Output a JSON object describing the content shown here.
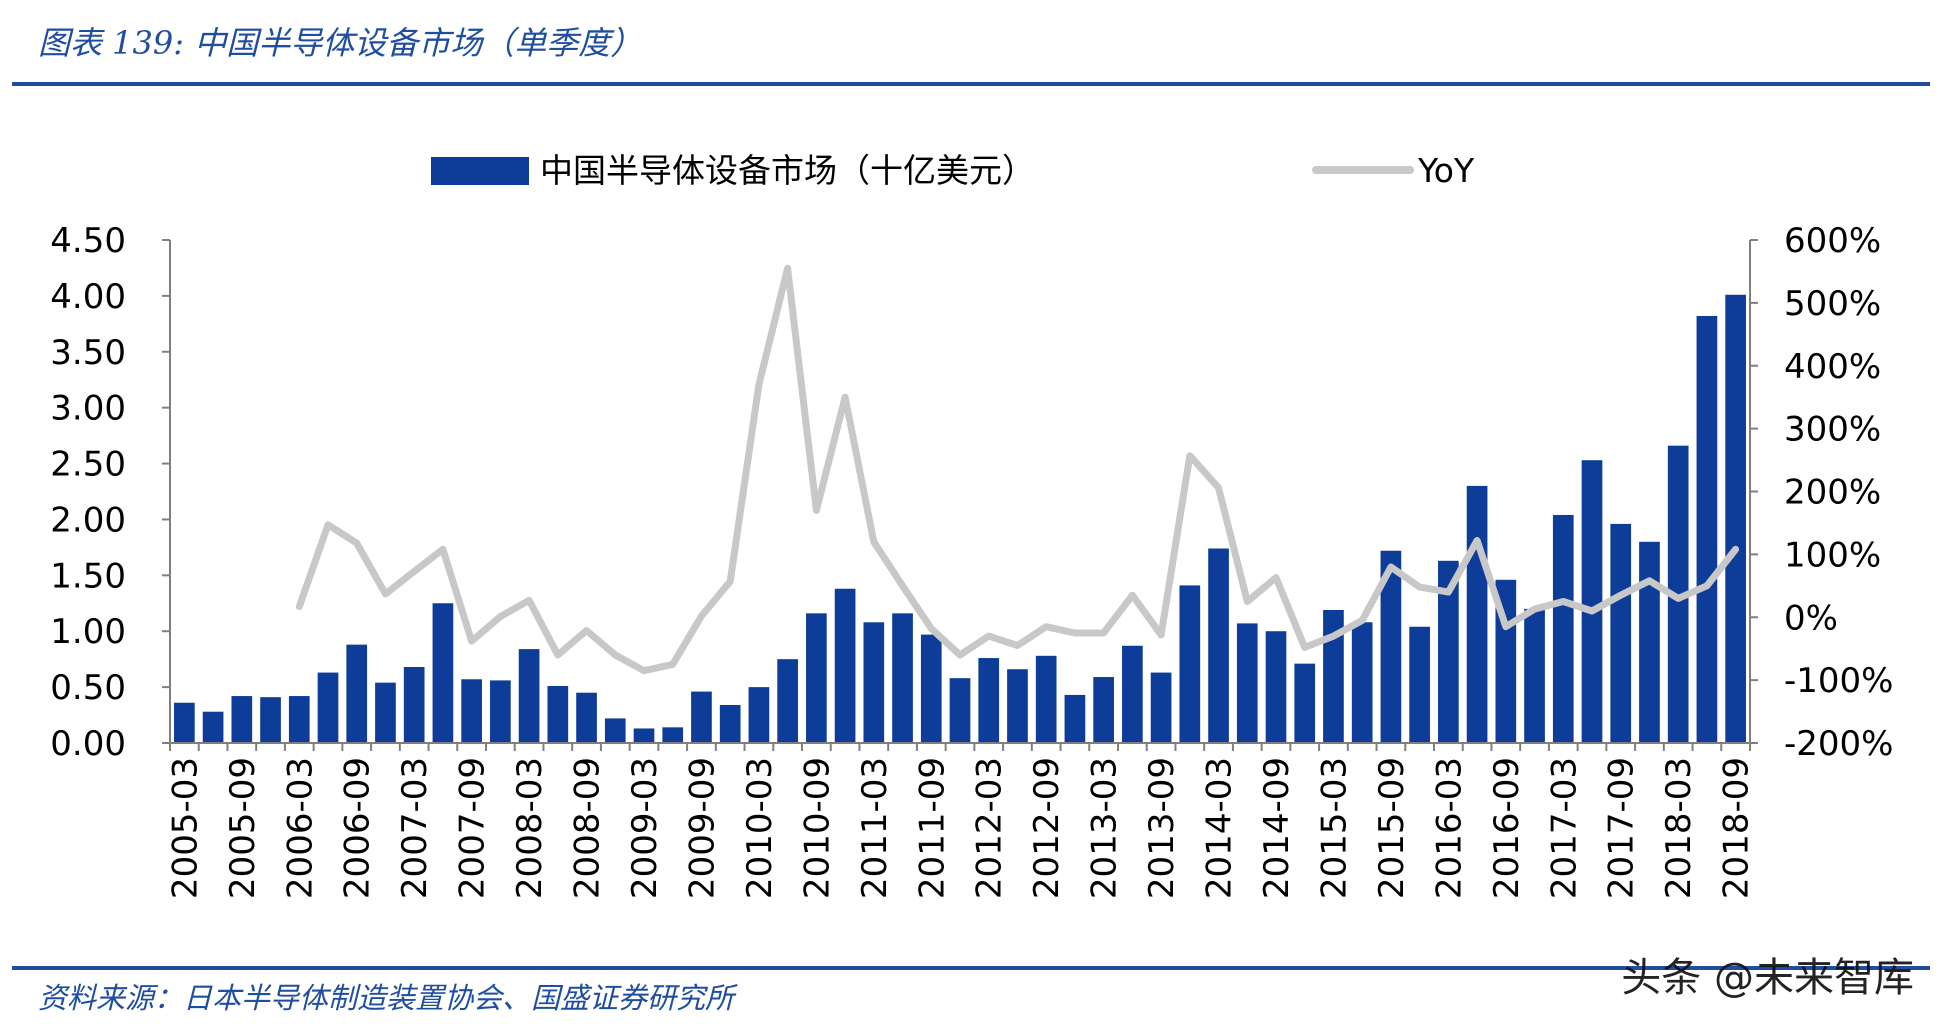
{
  "header": {
    "title": "图表 139:  中国半导体设备市场（单季度）"
  },
  "footer": {
    "source": "资料来源：日本半导体制造装置协会、国盛证券研究所",
    "watermark": "头条 @未来智库"
  },
  "colors": {
    "bar": "#0d3d99",
    "line": "#c8c8c8",
    "rule": "#1f4ea0"
  },
  "chart_data": {
    "type": "bar",
    "title": "",
    "categories": [
      "2005-03",
      "2005-06",
      "2005-09",
      "2005-12",
      "2006-03",
      "2006-06",
      "2006-09",
      "2006-12",
      "2007-03",
      "2007-06",
      "2007-09",
      "2007-12",
      "2008-03",
      "2008-06",
      "2008-09",
      "2008-12",
      "2009-03",
      "2009-06",
      "2009-09",
      "2009-12",
      "2010-03",
      "2010-06",
      "2010-09",
      "2010-12",
      "2011-03",
      "2011-06",
      "2011-09",
      "2011-12",
      "2012-03",
      "2012-06",
      "2012-09",
      "2012-12",
      "2013-03",
      "2013-06",
      "2013-09",
      "2013-12",
      "2014-03",
      "2014-06",
      "2014-09",
      "2014-12",
      "2015-03",
      "2015-06",
      "2015-09",
      "2015-12",
      "2016-03",
      "2016-06",
      "2016-09",
      "2016-12",
      "2017-03",
      "2017-06",
      "2017-09",
      "2017-12",
      "2018-03",
      "2018-06",
      "2018-09"
    ],
    "tick_labels": [
      "2005-03",
      "2005-09",
      "2006-03",
      "2006-09",
      "2007-03",
      "2007-09",
      "2008-03",
      "2008-09",
      "2009-03",
      "2009-09",
      "2010-03",
      "2010-09",
      "2011-03",
      "2011-09",
      "2012-03",
      "2012-09",
      "2013-03",
      "2013-09",
      "2014-03",
      "2014-09",
      "2015-03",
      "2015-09",
      "2016-03",
      "2016-09",
      "2017-03",
      "2017-09",
      "2018-03",
      "2018-09"
    ],
    "series": [
      {
        "name": "中国半导体设备市场（十亿美元）",
        "type": "bar",
        "axis": "left",
        "values": [
          0.36,
          0.28,
          0.42,
          0.41,
          0.42,
          0.63,
          0.88,
          0.54,
          0.68,
          1.25,
          0.57,
          0.56,
          0.84,
          0.51,
          0.45,
          0.22,
          0.13,
          0.14,
          0.46,
          0.34,
          0.5,
          0.75,
          1.16,
          1.38,
          1.08,
          1.16,
          0.97,
          0.58,
          0.76,
          0.66,
          0.78,
          0.43,
          0.59,
          0.87,
          0.63,
          1.41,
          1.74,
          1.07,
          1.0,
          0.71,
          1.19,
          1.08,
          1.72,
          1.04,
          1.63,
          2.3,
          1.46,
          1.2,
          2.04,
          2.53,
          1.96,
          1.8,
          2.66,
          3.82,
          4.01
        ]
      },
      {
        "name": "YoY",
        "type": "line",
        "axis": "right",
        "values": [
          null,
          null,
          null,
          null,
          17,
          147,
          118,
          37,
          73,
          108,
          -38,
          1,
          27,
          -60,
          -21,
          -60,
          -85,
          -75,
          2,
          57,
          370,
          555,
          170,
          350,
          120,
          50,
          -18,
          -60,
          -30,
          -45,
          -15,
          -25,
          -25,
          35,
          -28,
          257,
          206,
          25,
          63,
          -48,
          -30,
          -5,
          80,
          48,
          40,
          122,
          -15,
          13,
          25,
          10,
          35,
          58,
          30,
          50,
          108
        ]
      }
    ],
    "xlabel": "",
    "ylabel": "",
    "ylim": [
      0,
      4.5
    ],
    "yticks": [
      "0.00",
      "0.50",
      "1.00",
      "1.50",
      "2.00",
      "2.50",
      "3.00",
      "3.50",
      "4.00",
      "4.50"
    ],
    "y2lim": [
      -200,
      600
    ],
    "y2ticks": [
      "-200%",
      "-100%",
      "0%",
      "100%",
      "200%",
      "300%",
      "400%",
      "500%",
      "600%"
    ],
    "grid": false,
    "legend": "top-center"
  }
}
